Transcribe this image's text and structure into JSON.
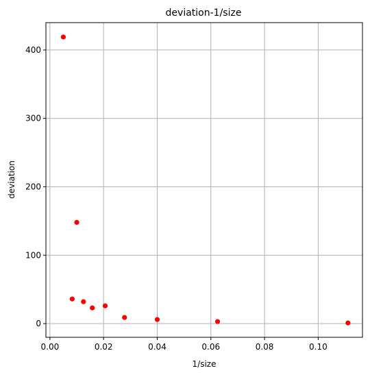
{
  "chart_data": {
    "type": "scatter",
    "title": "deviation-1/size",
    "xlabel": "1/size",
    "ylabel": "deviation",
    "xlim": [
      -0.0015,
      0.1165
    ],
    "ylim": [
      -20,
      440
    ],
    "xticks": [
      0.0,
      0.02,
      0.04,
      0.06,
      0.08,
      0.1
    ],
    "xtick_labels": [
      "0.00",
      "0.02",
      "0.04",
      "0.06",
      "0.08",
      "0.10"
    ],
    "yticks": [
      0,
      100,
      200,
      300,
      400
    ],
    "ytick_labels": [
      "0",
      "100",
      "200",
      "300",
      "400"
    ],
    "grid": true,
    "marker_color": "#ff0000",
    "grid_color": "#b0b0b0",
    "points": [
      {
        "x": 0.005,
        "y": 419
      },
      {
        "x": 0.01,
        "y": 148
      },
      {
        "x": 0.0083,
        "y": 36
      },
      {
        "x": 0.0125,
        "y": 32
      },
      {
        "x": 0.0158,
        "y": 23
      },
      {
        "x": 0.0206,
        "y": 26
      },
      {
        "x": 0.0278,
        "y": 9
      },
      {
        "x": 0.04,
        "y": 6
      },
      {
        "x": 0.0625,
        "y": 3
      },
      {
        "x": 0.1111,
        "y": 1
      }
    ]
  }
}
